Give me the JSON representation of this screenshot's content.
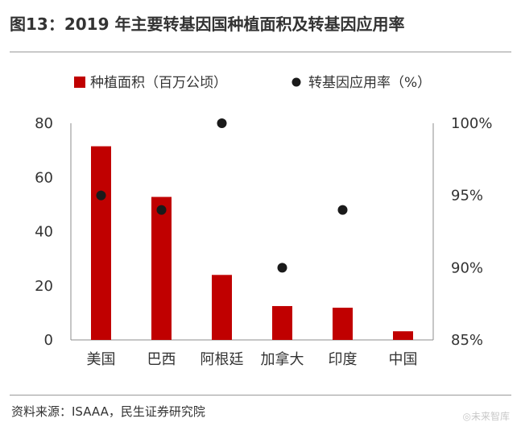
{
  "header": {
    "title": "图13：2019 年主要转基因国种植面积及转基因应用率"
  },
  "footer": {
    "source": "资料来源：ISAAA，民生证券研究院",
    "watermark": "◎未来智库"
  },
  "colors": {
    "bar": "#c00000",
    "dot": "#1a1a1a",
    "axis": "#8c8c8c"
  },
  "chart_data": {
    "type": "bar",
    "title": "",
    "categories": [
      "美国",
      "巴西",
      "阿根廷",
      "加拿大",
      "印度",
      "中国"
    ],
    "series": [
      {
        "name": "种植面积（百万公顷）",
        "type": "bar",
        "axis": "left",
        "values": [
          71.5,
          52.8,
          24.0,
          12.5,
          11.9,
          3.2
        ]
      },
      {
        "name": "转基因应用率（%）",
        "type": "scatter",
        "axis": "right",
        "values": [
          95,
          94,
          100,
          90,
          94,
          null
        ]
      }
    ],
    "y_left": {
      "min": 0,
      "max": 80,
      "ticks": [
        "0",
        "20",
        "40",
        "60",
        "80"
      ]
    },
    "y_right": {
      "min": 85,
      "max": 100,
      "ticks": [
        "85%",
        "90%",
        "95%",
        "100%"
      ]
    },
    "legend_position": "top",
    "grid": false
  }
}
